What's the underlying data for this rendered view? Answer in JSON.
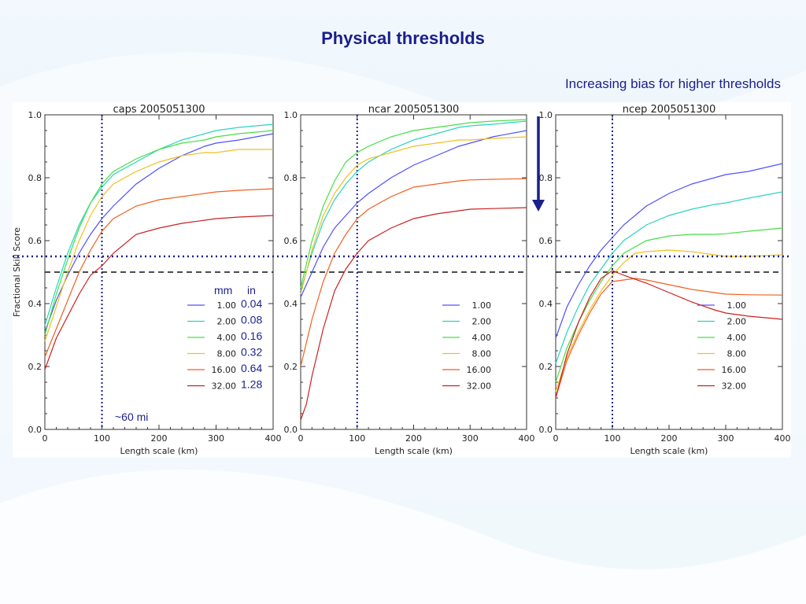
{
  "slide": {
    "title": "Physical thresholds",
    "note": "Increasing bias for higher thresholds",
    "arrow_icon": "down-arrow-icon",
    "accent_color": "#1a1f8c"
  },
  "legend_headers": {
    "mm": "mm",
    "in": "in"
  },
  "annotation": "~60 mi",
  "ylabel": "Fractional Skill Score",
  "reference_lines": {
    "vertical_x": 100,
    "dotted_y": 0.55,
    "dashed_y": 0.5
  },
  "chart_data": [
    {
      "type": "line",
      "title": "caps 2005051300",
      "xlabel": "Length scale (km)",
      "ylabel": "Fractional Skill Score",
      "xlim": [
        0,
        400
      ],
      "ylim": [
        0,
        1
      ],
      "xticks": [
        "0",
        "100",
        "200",
        "300",
        "400"
      ],
      "yticks": [
        "0.0",
        "0.2",
        "0.4",
        "0.6",
        "0.8",
        "1.0"
      ],
      "legend_position": "center-right",
      "legend_extra": [
        "0.04",
        "0.08",
        "0.16",
        "0.32",
        "0.64",
        "1.28"
      ],
      "series": [
        {
          "name": "1.00",
          "color": "#5050ff",
          "x": [
            0,
            20,
            40,
            60,
            80,
            100,
            120,
            160,
            200,
            240,
            280,
            300,
            340,
            400
          ],
          "y": [
            0.31,
            0.41,
            0.49,
            0.56,
            0.62,
            0.67,
            0.71,
            0.78,
            0.83,
            0.87,
            0.9,
            0.91,
            0.92,
            0.94
          ]
        },
        {
          "name": "2.00",
          "color": "#2ad4c0",
          "x": [
            0,
            20,
            40,
            60,
            80,
            100,
            120,
            160,
            200,
            240,
            280,
            300,
            340,
            400
          ],
          "y": [
            0.33,
            0.45,
            0.56,
            0.65,
            0.72,
            0.77,
            0.81,
            0.85,
            0.89,
            0.92,
            0.94,
            0.95,
            0.96,
            0.97
          ]
        },
        {
          "name": "4.00",
          "color": "#44e044",
          "x": [
            0,
            20,
            40,
            60,
            80,
            100,
            120,
            160,
            200,
            240,
            280,
            300,
            340,
            400
          ],
          "y": [
            0.3,
            0.43,
            0.54,
            0.64,
            0.72,
            0.78,
            0.82,
            0.86,
            0.89,
            0.91,
            0.92,
            0.93,
            0.94,
            0.95
          ]
        },
        {
          "name": "8.00",
          "color": "#f0c020",
          "x": [
            0,
            20,
            40,
            60,
            80,
            100,
            120,
            160,
            200,
            240,
            280,
            300,
            340,
            400
          ],
          "y": [
            0.28,
            0.39,
            0.5,
            0.6,
            0.68,
            0.74,
            0.78,
            0.82,
            0.85,
            0.87,
            0.88,
            0.88,
            0.89,
            0.89
          ]
        },
        {
          "name": "16.00",
          "color": "#f06020",
          "x": [
            0,
            20,
            40,
            60,
            80,
            100,
            120,
            160,
            200,
            240,
            280,
            300,
            340,
            400
          ],
          "y": [
            0.23,
            0.32,
            0.41,
            0.5,
            0.57,
            0.63,
            0.67,
            0.71,
            0.73,
            0.74,
            0.75,
            0.755,
            0.76,
            0.765
          ]
        },
        {
          "name": "32.00",
          "color": "#cc2020",
          "x": [
            0,
            20,
            40,
            60,
            80,
            100,
            120,
            160,
            200,
            240,
            280,
            300,
            340,
            400
          ],
          "y": [
            0.19,
            0.29,
            0.36,
            0.43,
            0.49,
            0.52,
            0.56,
            0.62,
            0.64,
            0.655,
            0.665,
            0.67,
            0.675,
            0.68
          ]
        }
      ]
    },
    {
      "type": "line",
      "title": "ncar 2005051300",
      "xlabel": "Length scale (km)",
      "ylabel": "",
      "xlim": [
        0,
        400
      ],
      "ylim": [
        0,
        1
      ],
      "xticks": [
        "0",
        "100",
        "200",
        "300",
        "400"
      ],
      "yticks": [
        "0.0",
        "0.2",
        "0.4",
        "0.6",
        "0.8",
        "1.0"
      ],
      "legend_position": "center-right",
      "series": [
        {
          "name": "1.00",
          "color": "#5050ff",
          "x": [
            0,
            20,
            40,
            60,
            80,
            100,
            120,
            160,
            200,
            240,
            280,
            300,
            340,
            400
          ],
          "y": [
            0.42,
            0.5,
            0.58,
            0.64,
            0.68,
            0.72,
            0.75,
            0.8,
            0.84,
            0.87,
            0.9,
            0.91,
            0.93,
            0.95
          ]
        },
        {
          "name": "2.00",
          "color": "#2ad4c0",
          "x": [
            0,
            20,
            40,
            60,
            80,
            100,
            120,
            160,
            200,
            240,
            280,
            300,
            340,
            400
          ],
          "y": [
            0.44,
            0.56,
            0.66,
            0.73,
            0.78,
            0.82,
            0.85,
            0.89,
            0.92,
            0.94,
            0.96,
            0.965,
            0.97,
            0.98
          ]
        },
        {
          "name": "4.00",
          "color": "#44e044",
          "x": [
            0,
            20,
            40,
            60,
            80,
            100,
            120,
            160,
            200,
            240,
            280,
            300,
            340,
            400
          ],
          "y": [
            0.45,
            0.6,
            0.71,
            0.79,
            0.85,
            0.88,
            0.9,
            0.93,
            0.95,
            0.96,
            0.97,
            0.975,
            0.98,
            0.985
          ]
        },
        {
          "name": "8.00",
          "color": "#f0c020",
          "x": [
            0,
            20,
            40,
            60,
            80,
            100,
            120,
            160,
            200,
            240,
            280,
            300,
            340,
            400
          ],
          "y": [
            0.43,
            0.57,
            0.68,
            0.75,
            0.8,
            0.84,
            0.86,
            0.88,
            0.9,
            0.91,
            0.92,
            0.92,
            0.925,
            0.93
          ]
        },
        {
          "name": "16.00",
          "color": "#f06020",
          "x": [
            0,
            20,
            40,
            60,
            80,
            100,
            120,
            160,
            200,
            240,
            280,
            300,
            340,
            400
          ],
          "y": [
            0.2,
            0.35,
            0.47,
            0.56,
            0.62,
            0.67,
            0.7,
            0.74,
            0.77,
            0.78,
            0.79,
            0.793,
            0.795,
            0.797
          ]
        },
        {
          "name": "32.00",
          "color": "#cc2020",
          "x": [
            0,
            10,
            20,
            40,
            60,
            80,
            100,
            120,
            160,
            200,
            240,
            280,
            300,
            340,
            400
          ],
          "y": [
            0.03,
            0.08,
            0.17,
            0.32,
            0.44,
            0.51,
            0.56,
            0.6,
            0.64,
            0.67,
            0.685,
            0.695,
            0.7,
            0.702,
            0.705
          ]
        }
      ]
    },
    {
      "type": "line",
      "title": "ncep 2005051300",
      "xlabel": "Length scale (km)",
      "ylabel": "",
      "xlim": [
        0,
        400
      ],
      "ylim": [
        0,
        1
      ],
      "xticks": [
        "0",
        "100",
        "200",
        "300",
        "400"
      ],
      "yticks": [
        "0.0",
        "0.2",
        "0.4",
        "0.6",
        "0.8",
        "1.0"
      ],
      "legend_position": "bottom-right",
      "series": [
        {
          "name": "1.00",
          "color": "#5050ff",
          "x": [
            0,
            20,
            40,
            60,
            80,
            100,
            120,
            160,
            200,
            240,
            280,
            300,
            340,
            400
          ],
          "y": [
            0.29,
            0.39,
            0.46,
            0.52,
            0.57,
            0.61,
            0.65,
            0.71,
            0.75,
            0.78,
            0.8,
            0.81,
            0.82,
            0.845
          ]
        },
        {
          "name": "2.00",
          "color": "#2ad4c0",
          "x": [
            0,
            20,
            40,
            60,
            80,
            100,
            120,
            160,
            200,
            240,
            280,
            300,
            340,
            400
          ],
          "y": [
            0.21,
            0.31,
            0.39,
            0.46,
            0.51,
            0.56,
            0.6,
            0.65,
            0.68,
            0.7,
            0.715,
            0.72,
            0.735,
            0.755
          ]
        },
        {
          "name": "4.00",
          "color": "#44e044",
          "x": [
            0,
            20,
            40,
            60,
            80,
            100,
            120,
            160,
            200,
            240,
            280,
            300,
            340,
            400
          ],
          "y": [
            0.15,
            0.26,
            0.34,
            0.41,
            0.47,
            0.52,
            0.56,
            0.6,
            0.615,
            0.62,
            0.62,
            0.622,
            0.63,
            0.64
          ]
        },
        {
          "name": "8.00",
          "color": "#f0c020",
          "x": [
            0,
            20,
            40,
            60,
            80,
            100,
            120,
            140,
            160,
            200,
            240,
            280,
            300,
            340,
            400
          ],
          "y": [
            0.12,
            0.23,
            0.31,
            0.38,
            0.44,
            0.49,
            0.53,
            0.56,
            0.565,
            0.57,
            0.565,
            0.555,
            0.55,
            0.55,
            0.555
          ]
        },
        {
          "name": "16.00",
          "color": "#f06020",
          "x": [
            0,
            20,
            40,
            60,
            80,
            100,
            120,
            140,
            160,
            200,
            240,
            280,
            300,
            340,
            400
          ],
          "y": [
            0.1,
            0.22,
            0.3,
            0.37,
            0.43,
            0.47,
            0.475,
            0.48,
            0.475,
            0.46,
            0.445,
            0.435,
            0.43,
            0.428,
            0.427
          ]
        },
        {
          "name": "32.00",
          "color": "#cc2020",
          "x": [
            0,
            20,
            40,
            60,
            80,
            100,
            120,
            160,
            200,
            240,
            280,
            300,
            340,
            400
          ],
          "y": [
            0.1,
            0.24,
            0.34,
            0.42,
            0.48,
            0.505,
            0.49,
            0.465,
            0.435,
            0.405,
            0.38,
            0.37,
            0.36,
            0.35
          ]
        }
      ]
    }
  ]
}
